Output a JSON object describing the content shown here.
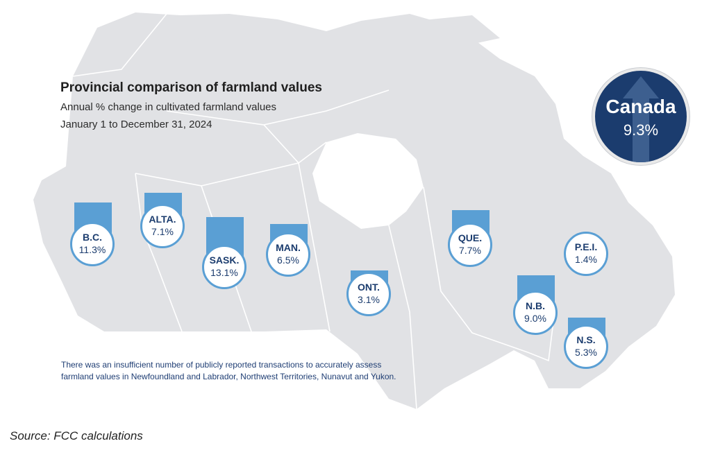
{
  "title": "Provincial comparison of farmland values",
  "subtitle_1": "Annual % change in cultivated farmland values",
  "subtitle_2": "January 1 to December 31, 2024",
  "national": {
    "name": "Canada",
    "value": "9.3%",
    "percent": 9.3
  },
  "provinces": [
    {
      "id": "bc",
      "name": "B.C.",
      "value": "11.3%",
      "percent": 11.3
    },
    {
      "id": "alta",
      "name": "ALTA.",
      "value": "7.1%",
      "percent": 7.1
    },
    {
      "id": "sask",
      "name": "SASK.",
      "value": "13.1%",
      "percent": 13.1
    },
    {
      "id": "man",
      "name": "MAN.",
      "value": "6.5%",
      "percent": 6.5
    },
    {
      "id": "ont",
      "name": "ONT.",
      "value": "3.1%",
      "percent": 3.1
    },
    {
      "id": "que",
      "name": "QUE.",
      "value": "7.7%",
      "percent": 7.7
    },
    {
      "id": "nb",
      "name": "N.B.",
      "value": "9.0%",
      "percent": 9.0
    },
    {
      "id": "pei",
      "name": "P.E.I.",
      "value": "1.4%",
      "percent": 1.4
    },
    {
      "id": "ns",
      "name": "N.S.",
      "value": "5.3%",
      "percent": 5.3
    }
  ],
  "note": "There was an insufficient number of publicly reported transactions to accurately assess farmland values in Newfoundland and Labrador, Northwest Territories, Nunavut and Yukon.",
  "source": "Source: FCC calculations",
  "colors": {
    "map_fill": "#e1e2e5",
    "map_lines": "#ffffff",
    "bar": "#5a9fd4",
    "badge": "#1b3c6e",
    "label_text": "#1b3c6e"
  }
}
